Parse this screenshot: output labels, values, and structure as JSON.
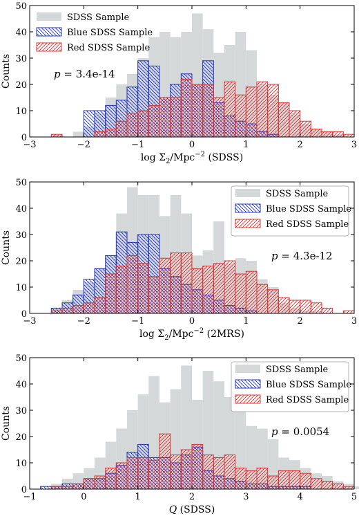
{
  "chart_data": [
    {
      "type": "bar",
      "ylabel": "Counts",
      "xlabel_prefix": "log Σ",
      "xlabel_sub": "2",
      "xlabel_mid": "/Mpc",
      "xlabel_sup": "−2",
      "xlabel_suffix": " (SDSS)",
      "xlim": [
        -3,
        3
      ],
      "ylim": [
        0,
        50
      ],
      "bin_width": 0.2,
      "bin_start": -2.6,
      "xticks": [
        "−3",
        "−2",
        "−1",
        "0",
        "1",
        "2",
        "3"
      ],
      "yticks": [
        "0",
        "10",
        "20",
        "30",
        "40",
        "50"
      ],
      "legend_position": "top-left",
      "annotation": {
        "prefix": "p",
        "value": " = 3.4e-14",
        "position": "upper-left"
      },
      "series": [
        {
          "name": "SDSS Sample",
          "style": "filled",
          "color": "#d4d8d9",
          "values": [
            1,
            0,
            2,
            4,
            9,
            15,
            20,
            24,
            30,
            38,
            40,
            38,
            40,
            47,
            41,
            32,
            35,
            40,
            33,
            20,
            16,
            13,
            9,
            5,
            3,
            2,
            1,
            0
          ]
        },
        {
          "name": "Blue SDSS Sample",
          "style": "hatch-back",
          "color": "#1f33c9",
          "values": [
            0,
            0,
            0,
            10,
            10,
            12,
            14,
            19,
            29,
            27,
            15,
            20,
            24,
            20,
            29,
            13,
            8,
            6,
            5,
            2,
            1,
            0,
            0,
            0,
            0,
            0,
            0,
            0
          ]
        },
        {
          "name": "Red SDSS Sample",
          "style": "hatch-fwd",
          "color": "#e0302e",
          "values": [
            1,
            0,
            0,
            0,
            2,
            3,
            6,
            9,
            10,
            12,
            15,
            15,
            22,
            20,
            20,
            15,
            21,
            16,
            19,
            21,
            20,
            13,
            10,
            6,
            3,
            2,
            2,
            1
          ]
        }
      ]
    },
    {
      "type": "bar",
      "ylabel": "Counts",
      "xlabel_prefix": "log Σ",
      "xlabel_sub": "2",
      "xlabel_mid": "/Mpc",
      "xlabel_sup": "−2",
      "xlabel_suffix": " (2MRS)",
      "xlim": [
        -3,
        3
      ],
      "ylim": [
        0,
        50
      ],
      "bin_width": 0.2,
      "bin_start": -2.6,
      "xticks": [
        "−3",
        "−2",
        "−1",
        "0",
        "1",
        "2",
        "3"
      ],
      "yticks": [
        "0",
        "10",
        "20",
        "30",
        "40",
        "50"
      ],
      "legend_position": "top-right",
      "annotation": {
        "prefix": "p",
        "value": " = 4.3e-12",
        "position": "right"
      },
      "series": [
        {
          "name": "SDSS Sample",
          "style": "filled",
          "color": "#d4d8d9",
          "values": [
            2,
            5,
            9,
            12,
            17,
            22,
            38,
            48,
            45,
            45,
            37,
            45,
            38,
            22,
            24,
            35,
            19,
            21,
            20,
            13,
            10,
            4,
            2,
            1,
            1,
            0,
            0,
            0
          ]
        },
        {
          "name": "Blue SDSS Sample",
          "style": "hatch-back",
          "color": "#1f33c9",
          "values": [
            2,
            4,
            7,
            13,
            17,
            22,
            31,
            27,
            30,
            30,
            17,
            14,
            11,
            9,
            7,
            5,
            3,
            2,
            1,
            0,
            0,
            0,
            0,
            0,
            0,
            0,
            0,
            0
          ]
        },
        {
          "name": "Red SDSS Sample",
          "style": "hatch-fwd",
          "color": "#e0302e",
          "values": [
            1,
            2,
            3,
            4,
            6,
            15,
            18,
            22,
            19,
            14,
            21,
            23,
            23,
            17,
            18,
            19,
            20,
            15,
            16,
            11,
            9,
            6,
            5,
            5,
            4,
            2,
            0,
            1
          ]
        }
      ]
    },
    {
      "type": "bar",
      "ylabel": "Counts",
      "xlabel_prefix": "Q",
      "xlabel_sub": "",
      "xlabel_mid": "",
      "xlabel_sup": "",
      "xlabel_suffix": " (SDSS)",
      "xlim": [
        -1,
        5
      ],
      "ylim": [
        0,
        50
      ],
      "bin_width": 0.2,
      "bin_start": -0.8,
      "xticks": [
        "−1",
        "0",
        "1",
        "2",
        "3",
        "4",
        "5"
      ],
      "yticks": [
        "0",
        "10",
        "20",
        "30",
        "40",
        "50"
      ],
      "legend_position": "top-right",
      "annotation": {
        "prefix": "p",
        "value": " = 0.0054",
        "position": "right"
      },
      "series": [
        {
          "name": "SDSS Sample",
          "style": "filled",
          "color": "#d4d8d9",
          "values": [
            0,
            2,
            4,
            6,
            8,
            12,
            18,
            23,
            30,
            36,
            43,
            33,
            38,
            47,
            34,
            45,
            41,
            35,
            30,
            24,
            23,
            19,
            12,
            11,
            8,
            6,
            5,
            3,
            2,
            1
          ]
        },
        {
          "name": "Blue SDSS Sample",
          "style": "hatch-back",
          "color": "#1f33c9",
          "values": [
            1,
            1,
            2,
            2,
            4,
            4,
            6,
            9,
            14,
            17,
            12,
            12,
            10,
            13,
            16,
            7,
            5,
            4,
            3,
            2,
            2,
            1,
            1,
            1,
            1,
            0,
            0,
            0,
            0,
            0
          ]
        },
        {
          "name": "Red SDSS Sample",
          "style": "hatch-fwd",
          "color": "#e0302e",
          "values": [
            0,
            1,
            1,
            2,
            4,
            5,
            8,
            10,
            12,
            12,
            11,
            21,
            13,
            15,
            17,
            13,
            12,
            13,
            8,
            7,
            8,
            5,
            7,
            7,
            6,
            4,
            3,
            2,
            1,
            0
          ]
        }
      ]
    }
  ]
}
